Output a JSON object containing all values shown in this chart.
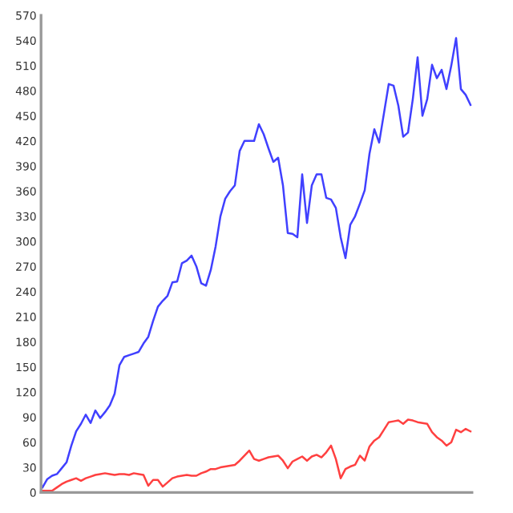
{
  "chart_data": {
    "type": "line",
    "categories": [
      null,
      null,
      null,
      null,
      null,
      null,
      null,
      null,
      null,
      null,
      null,
      null,
      null,
      null,
      null,
      null,
      null,
      null,
      null,
      null,
      null,
      null,
      null,
      null,
      null,
      null,
      null,
      null,
      null,
      null,
      null,
      null,
      null,
      null,
      null,
      null,
      null,
      null,
      null,
      null,
      null,
      null,
      null,
      null,
      null,
      null,
      null,
      null,
      null,
      null,
      null,
      null,
      null,
      null,
      null,
      null,
      null,
      null,
      null,
      null,
      null,
      null,
      null,
      null,
      null,
      null,
      null,
      null,
      null,
      null,
      null,
      null,
      null,
      null,
      null,
      null,
      null,
      null,
      null,
      null,
      null,
      null,
      null,
      null,
      null,
      null,
      null,
      null,
      null,
      null
    ],
    "series": [
      {
        "color": "#4040ff",
        "values": [
          6,
          16,
          20,
          22,
          29,
          36,
          56,
          73,
          82,
          93,
          83,
          98,
          89,
          96,
          104,
          118,
          152,
          162,
          164,
          166,
          168,
          178,
          186,
          205,
          222,
          229,
          235,
          251,
          252,
          274,
          277,
          283,
          270,
          250,
          247,
          266,
          294,
          330,
          351,
          360,
          367,
          408,
          420,
          420,
          420,
          440,
          428,
          411,
          395,
          400,
          367,
          310,
          309,
          305,
          380,
          322,
          367,
          380,
          380,
          352,
          350,
          340,
          305,
          280,
          320,
          330,
          345,
          361,
          405,
          434,
          418,
          453,
          488,
          486,
          462,
          425,
          430,
          470,
          520,
          450,
          470,
          511,
          495,
          505,
          482,
          510,
          543,
          482,
          475,
          463
        ]
      },
      {
        "color": "#ff4040",
        "values": [
          2,
          2,
          2,
          6,
          10,
          13,
          15,
          17,
          14,
          17,
          19,
          21,
          22,
          23,
          22,
          21,
          22,
          22,
          21,
          23,
          22,
          21,
          8,
          15,
          15,
          7,
          12,
          17,
          19,
          20,
          21,
          20,
          20,
          23,
          25,
          28,
          28,
          30,
          31,
          32,
          33,
          38,
          44,
          50,
          40,
          38,
          40,
          42,
          43,
          44,
          38,
          29,
          37,
          40,
          43,
          38,
          43,
          45,
          42,
          48,
          56,
          40,
          17,
          28,
          31,
          33,
          44,
          38,
          55,
          62,
          66,
          75,
          84,
          85,
          86,
          82,
          87,
          86,
          84,
          83,
          82,
          72,
          66,
          62,
          56,
          60,
          75,
          72,
          76,
          73
        ]
      }
    ],
    "ylim": [
      0,
      570
    ],
    "yticks": [
      0,
      30,
      60,
      90,
      120,
      150,
      180,
      210,
      240,
      270,
      300,
      330,
      360,
      390,
      420,
      450,
      480,
      510,
      540,
      570
    ],
    "tick_labels": "y"
  }
}
